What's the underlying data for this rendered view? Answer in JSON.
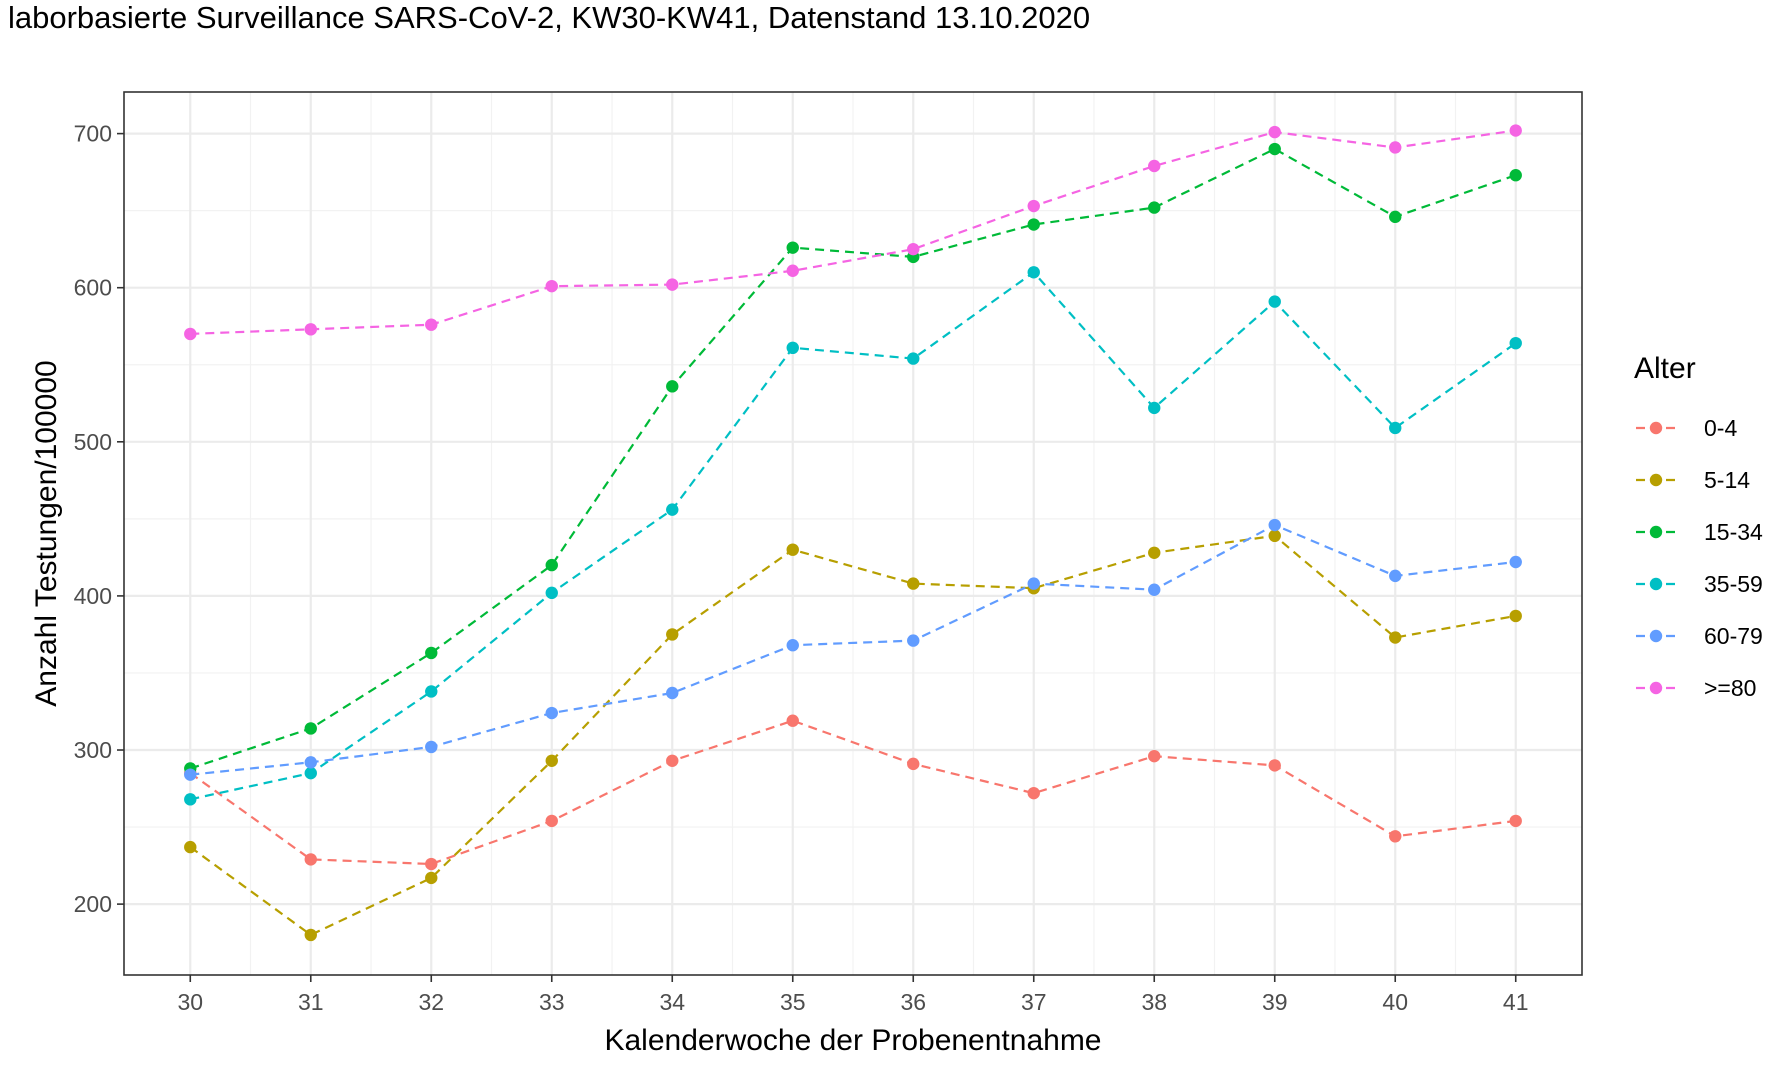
{
  "title": "laborbasierte Surveillance SARS-CoV-2, KW30-KW41, Datenstand 13.10.2020",
  "chart_data": {
    "type": "line",
    "title": "laborbasierte Surveillance SARS-CoV-2, KW30-KW41, Datenstand 13.10.2020",
    "xlabel": "Kalenderwoche der Probenentnahme",
    "ylabel": "Anzahl Testungen/100000",
    "x": [
      30,
      31,
      32,
      33,
      34,
      35,
      36,
      37,
      38,
      39,
      40,
      41
    ],
    "xlim": [
      29.45,
      41.55
    ],
    "ylim": [
      154,
      727
    ],
    "yticks": [
      200,
      300,
      400,
      500,
      600,
      700
    ],
    "grid": true,
    "legend": {
      "title": "Alter",
      "position": "right"
    },
    "series": [
      {
        "name": "0-4",
        "color": "#F8766D",
        "values": [
          285,
          229,
          226,
          254,
          293,
          319,
          291,
          272,
          296,
          290,
          244,
          254
        ]
      },
      {
        "name": "5-14",
        "color": "#B79F00",
        "values": [
          237,
          180,
          217,
          293,
          375,
          430,
          408,
          405,
          428,
          439,
          373,
          387
        ]
      },
      {
        "name": "15-34",
        "color": "#00BA38",
        "values": [
          288,
          314,
          363,
          420,
          536,
          626,
          620,
          641,
          652,
          690,
          646,
          673
        ]
      },
      {
        "name": "35-59",
        "color": "#00BFC4",
        "values": [
          268,
          285,
          338,
          402,
          456,
          561,
          554,
          610,
          522,
          591,
          509,
          564
        ]
      },
      {
        "name": "60-79",
        "color": "#619CFF",
        "values": [
          284,
          292,
          302,
          324,
          337,
          368,
          371,
          408,
          404,
          446,
          413,
          422
        ]
      },
      {
        "name": ">=80",
        "color": "#F564E3",
        "values": [
          570,
          573,
          576,
          601,
          602,
          611,
          625,
          653,
          679,
          701,
          691,
          702
        ]
      }
    ]
  }
}
